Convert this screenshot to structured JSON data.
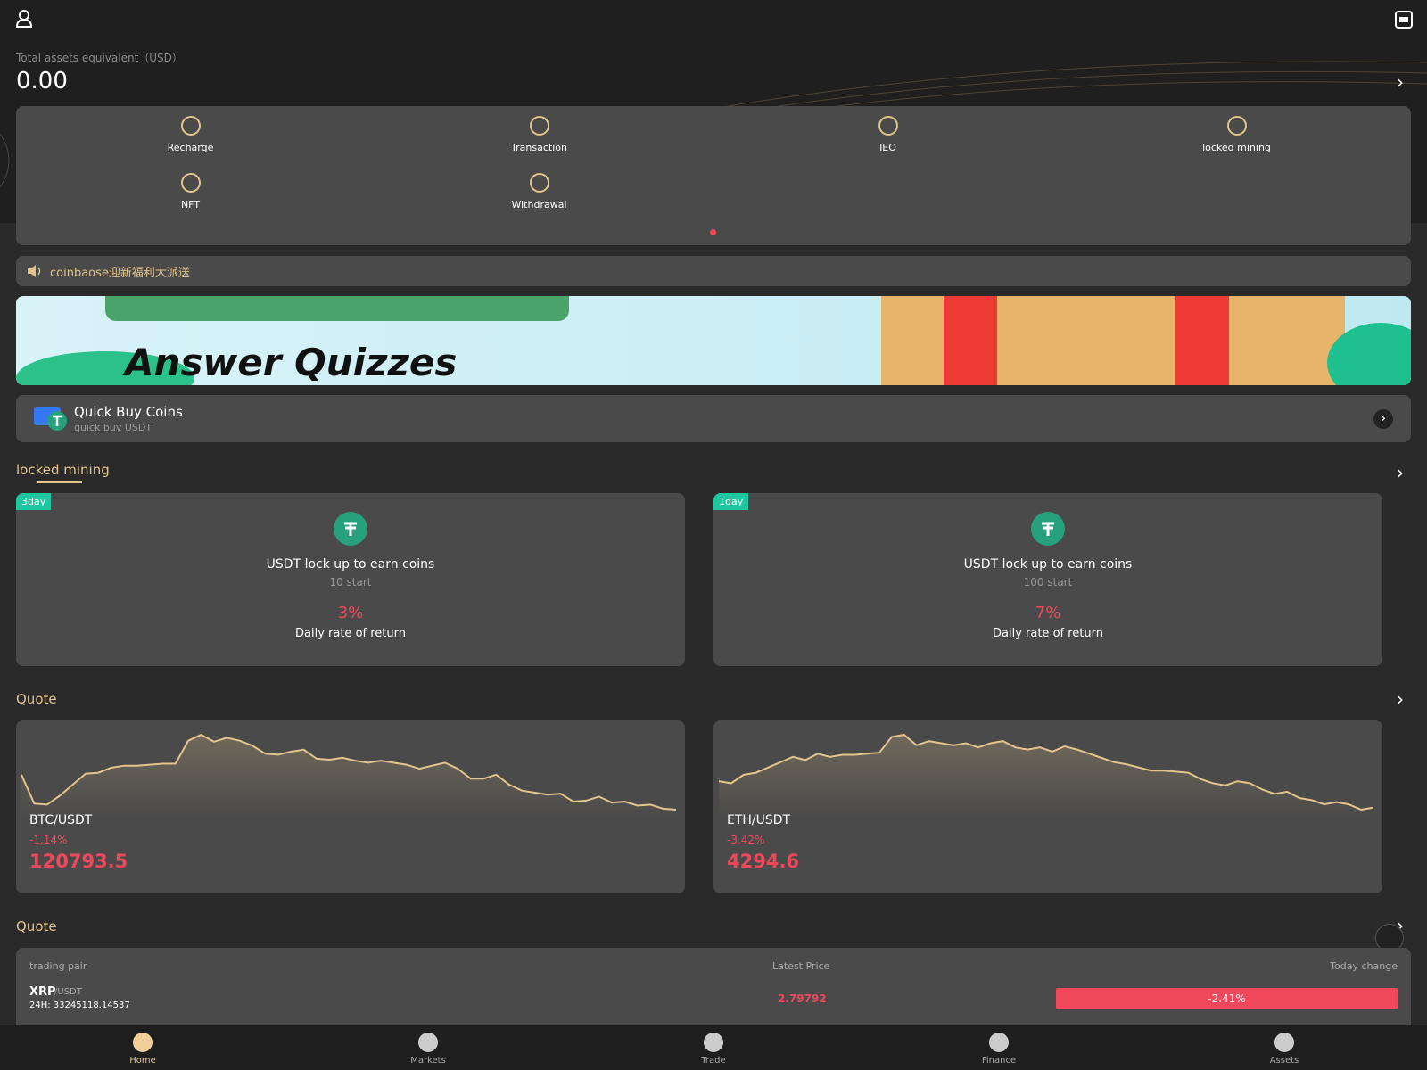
{
  "header": {
    "assets_label": "Total assets equivalent（USD）",
    "assets_value": "0.00"
  },
  "menu": [
    "Recharge",
    "Transaction",
    "IEO",
    "locked mining",
    "NFT",
    "Withdrawal"
  ],
  "notice": "coinbaose迎新福利大派送",
  "banner": {
    "text": "Answer Quizzes"
  },
  "quick_buy": {
    "title": "Quick Buy Coins",
    "subtitle": "quick buy USDT"
  },
  "mining": {
    "title": "locked mining",
    "products": [
      {
        "tag": "3day",
        "name": "USDT lock up to earn coins",
        "start": "10 start",
        "rate": "3%",
        "rate_label": "Daily rate of return"
      },
      {
        "tag": "1day",
        "name": "USDT lock up to earn coins",
        "start": "100 start",
        "rate": "7%",
        "rate_label": "Daily rate of return"
      }
    ]
  },
  "quote_cards": {
    "title": "Quote",
    "cards": [
      {
        "pair": "BTC/USDT",
        "change": "-1.14%",
        "price": "120793.5",
        "sparkline": [
          48,
          19,
          18,
          27,
          38,
          49,
          50,
          55,
          57,
          57,
          58,
          59,
          59,
          82,
          88,
          81,
          85,
          82,
          77,
          69,
          68,
          71,
          73,
          64,
          63,
          65,
          62,
          60,
          62,
          60,
          58,
          54,
          57,
          60,
          54,
          44,
          44,
          48,
          38,
          32,
          30,
          28,
          29,
          21,
          22,
          26,
          20,
          21,
          17,
          18,
          14,
          13
        ]
      },
      {
        "pair": "ETH/USDT",
        "change": "-3.42%",
        "price": "4294.6",
        "sparkline": [
          42,
          40,
          48,
          50,
          55,
          60,
          65,
          62,
          68,
          65,
          67,
          67,
          68,
          69,
          84,
          86,
          76,
          80,
          78,
          76,
          78,
          74,
          78,
          80,
          74,
          72,
          74,
          70,
          75,
          72,
          68,
          64,
          60,
          58,
          55,
          52,
          52,
          51,
          50,
          44,
          40,
          38,
          42,
          40,
          34,
          30,
          32,
          26,
          24,
          20,
          22,
          20,
          15,
          17
        ]
      }
    ]
  },
  "quote_table": {
    "title": "Quote",
    "headers": [
      "trading pair",
      "Latest Price",
      "Today change"
    ],
    "rows": [
      {
        "base": "XRP",
        "quote": "/USDT",
        "volume": "24H: 33245118.14537",
        "price": "2.79792",
        "change": "-2.41%"
      }
    ]
  },
  "nav": [
    "Home",
    "Markets",
    "Trade",
    "Finance",
    "Assets"
  ]
}
